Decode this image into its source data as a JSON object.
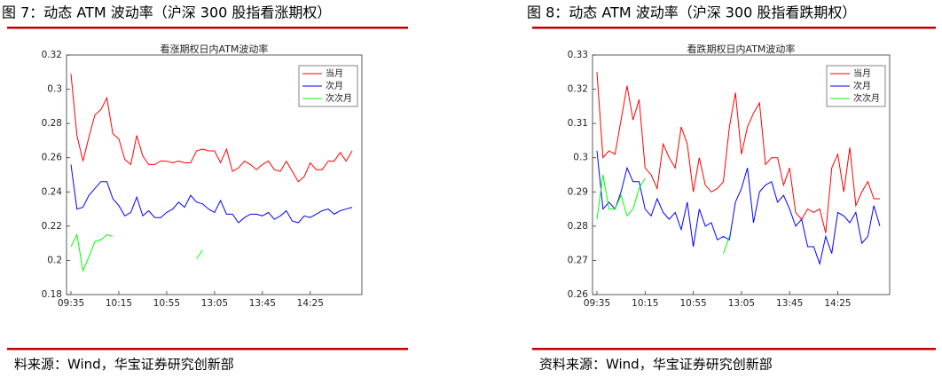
{
  "chart_data": [
    {
      "type": "line",
      "figure_title": "图 7：动态 ATM 波动率（沪深 300 股指看涨期权）",
      "title": "看涨期权日内ATM波动率",
      "source": "料来源：Wind，华宝证券研究创新部",
      "categories": [
        "09:35",
        null,
        null,
        null,
        null,
        null,
        null,
        null,
        "10:15",
        null,
        null,
        null,
        null,
        null,
        null,
        null,
        "10:55",
        null,
        null,
        null,
        null,
        null,
        null,
        null,
        "13:05",
        null,
        null,
        null,
        null,
        null,
        null,
        null,
        "13:45",
        null,
        null,
        null,
        null,
        null,
        null,
        null,
        "14:25",
        null,
        null,
        null,
        null,
        null,
        null,
        null
      ],
      "ylim": [
        0.18,
        0.32
      ],
      "yticks": [
        0.18,
        0.2,
        0.22,
        0.24,
        0.26,
        0.28,
        0.3,
        0.32
      ],
      "legend": "upper-right",
      "series": [
        {
          "name": "当月",
          "color": "#ff0000",
          "values": [
            0.309,
            0.273,
            0.258,
            0.272,
            0.285,
            0.288,
            0.295,
            0.274,
            0.271,
            0.259,
            0.256,
            0.273,
            0.261,
            0.256,
            0.256,
            0.258,
            0.258,
            0.257,
            0.258,
            0.257,
            0.257,
            0.264,
            0.265,
            0.264,
            0.264,
            0.257,
            0.265,
            0.252,
            0.254,
            0.258,
            0.256,
            0.253,
            0.256,
            0.258,
            0.253,
            0.252,
            0.258,
            0.252,
            0.246,
            0.249,
            0.257,
            0.253,
            0.253,
            0.258,
            0.258,
            0.263,
            0.258,
            0.264
          ]
        },
        {
          "name": "次月",
          "color": "#0000ff",
          "values": [
            0.256,
            0.23,
            0.231,
            0.238,
            0.242,
            0.246,
            0.246,
            0.236,
            0.232,
            0.226,
            0.228,
            0.237,
            0.226,
            0.229,
            0.225,
            0.225,
            0.228,
            0.23,
            0.234,
            0.231,
            0.238,
            0.234,
            0.233,
            0.23,
            0.228,
            0.235,
            0.227,
            0.227,
            0.222,
            0.225,
            0.227,
            0.227,
            0.226,
            0.228,
            0.224,
            0.226,
            0.229,
            0.223,
            0.222,
            0.226,
            0.225,
            0.227,
            0.229,
            0.23,
            0.227,
            0.229,
            0.23,
            0.231
          ]
        },
        {
          "name": "次次月",
          "color": "#00ff00",
          "values": [
            0.208,
            0.215,
            0.194,
            0.202,
            0.211,
            0.212,
            0.215,
            0.214,
            null,
            null,
            null,
            null,
            null,
            null,
            null,
            null,
            null,
            null,
            null,
            null,
            null,
            0.201,
            0.206,
            null,
            null,
            null,
            null,
            null,
            null,
            null,
            null,
            null,
            null,
            null,
            null,
            null,
            null,
            null,
            null,
            null,
            null,
            null,
            null,
            null,
            null,
            null,
            null,
            null
          ]
        }
      ]
    },
    {
      "type": "line",
      "figure_title": "图 8：动态 ATM 波动率（沪深 300 股指看跌期权）",
      "title": "看跌期权日内ATM波动率",
      "source": "资料来源：Wind，华宝证券研究创新部",
      "categories": [
        "09:35",
        null,
        null,
        null,
        null,
        null,
        null,
        null,
        "10:15",
        null,
        null,
        null,
        null,
        null,
        null,
        null,
        "10:55",
        null,
        null,
        null,
        null,
        null,
        null,
        null,
        "13:05",
        null,
        null,
        null,
        null,
        null,
        null,
        null,
        "13:45",
        null,
        null,
        null,
        null,
        null,
        null,
        null,
        "14:25",
        null,
        null,
        null,
        null,
        null,
        null,
        null
      ],
      "ylim": [
        0.26,
        0.33
      ],
      "yticks": [
        0.26,
        0.27,
        0.28,
        0.29,
        0.3,
        0.31,
        0.32,
        0.33
      ],
      "legend": "upper-right",
      "series": [
        {
          "name": "当月",
          "color": "#ff0000",
          "values": [
            0.325,
            0.3,
            0.302,
            0.301,
            0.311,
            0.321,
            0.311,
            0.317,
            0.297,
            0.295,
            0.291,
            0.304,
            0.3,
            0.297,
            0.309,
            0.304,
            0.29,
            0.3,
            0.292,
            0.29,
            0.291,
            0.293,
            0.309,
            0.319,
            0.301,
            0.309,
            0.313,
            0.316,
            0.298,
            0.3,
            0.3,
            0.292,
            0.297,
            0.284,
            0.282,
            0.285,
            0.284,
            0.285,
            0.278,
            0.297,
            0.301,
            0.29,
            0.303,
            0.286,
            0.29,
            0.293,
            0.288,
            0.288
          ]
        },
        {
          "name": "次月",
          "color": "#0000ff",
          "values": [
            0.302,
            0.285,
            0.287,
            0.285,
            0.29,
            0.297,
            0.293,
            0.293,
            0.285,
            0.283,
            0.288,
            0.284,
            0.282,
            0.284,
            0.279,
            0.287,
            0.274,
            0.285,
            0.28,
            0.281,
            0.276,
            0.277,
            0.276,
            0.287,
            0.291,
            0.297,
            0.281,
            0.29,
            0.292,
            0.293,
            0.287,
            0.289,
            0.285,
            0.28,
            0.282,
            0.274,
            0.274,
            0.269,
            0.277,
            0.272,
            0.284,
            0.283,
            0.281,
            0.284,
            0.275,
            0.277,
            0.286,
            0.28
          ]
        },
        {
          "name": "次次月",
          "color": "#00ff00",
          "values": [
            0.282,
            0.295,
            0.285,
            0.285,
            0.289,
            0.283,
            0.285,
            0.291,
            0.294,
            null,
            null,
            null,
            null,
            null,
            null,
            null,
            null,
            null,
            null,
            null,
            null,
            0.272,
            0.277,
            null,
            null,
            null,
            null,
            null,
            null,
            null,
            null,
            null,
            null,
            null,
            null,
            null,
            null,
            null,
            null,
            null,
            null,
            null,
            null,
            null,
            null,
            null,
            null,
            null
          ]
        }
      ]
    }
  ]
}
